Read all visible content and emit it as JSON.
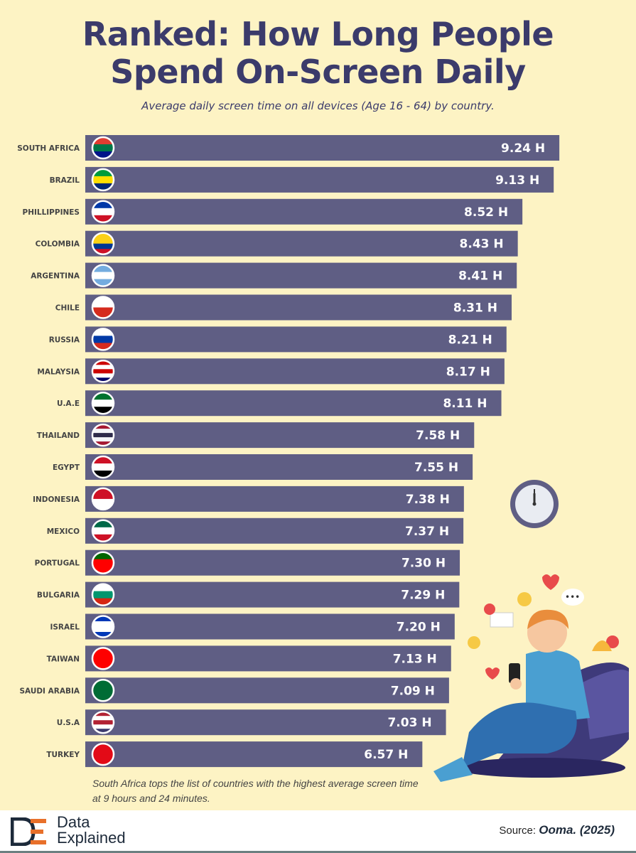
{
  "title_line1": "Ranked: How Long People",
  "title_line2": "Spend On-Screen Daily",
  "subtitle": "Average daily screen time on all devices (Age 16 - 64) by country.",
  "note": "South Africa tops the list of countries with the highest average screen time at 9 hours and 24 minutes.",
  "footer": {
    "logo_line1": "Data",
    "logo_line2": "Explained",
    "source_label": "Source:",
    "source_value": "Ooma. (2025)"
  },
  "colors": {
    "background": "#fdf3c4",
    "bar": "#5f5e84",
    "title": "#3b3b6b",
    "value_text": "#ffffff"
  },
  "chart_data": {
    "type": "bar",
    "orientation": "horizontal",
    "unit_suffix": " H",
    "categories": [
      "SOUTH AFRICA",
      "BRAZIL",
      "PHILLIPPINES",
      "COLOMBIA",
      "ARGENTINA",
      "CHILE",
      "RUSSIA",
      "MALAYSIA",
      "U.A.E",
      "THAILAND",
      "EGYPT",
      "INDONESIA",
      "MEXICO",
      "PORTUGAL",
      "BULGARIA",
      "ISRAEL",
      "TAIWAN",
      "SAUDI ARABIA",
      "U.S.A",
      "TURKEY"
    ],
    "values": [
      9.24,
      9.13,
      8.52,
      8.43,
      8.41,
      8.31,
      8.21,
      8.17,
      8.11,
      7.58,
      7.55,
      7.38,
      7.37,
      7.3,
      7.29,
      7.2,
      7.13,
      7.09,
      7.03,
      6.57
    ],
    "labels": [
      "9.24 H",
      "9.13 H",
      "8.52 H",
      "8.43 H",
      "8.41 H",
      "8.31 H",
      "8.21 H",
      "8.17 H",
      "8.11 H",
      "7.58 H",
      "7.55 H",
      "7.38 H",
      "7.37 H",
      "7.30 H",
      "7.29 H",
      "7.20 H",
      "7.13 H",
      "7.09 H",
      "7.03 H",
      "6.57 H"
    ],
    "flag_colors": [
      [
        "#e03c31",
        "#007749",
        "#001489"
      ],
      [
        "#009c3b",
        "#ffdf00",
        "#002776"
      ],
      [
        "#0038a8",
        "#ffffff",
        "#ce1126"
      ],
      [
        "#fcd116",
        "#fcd116",
        "#003893",
        "#ce1126"
      ],
      [
        "#74acdf",
        "#ffffff",
        "#74acdf"
      ],
      [
        "#ffffff",
        "#d52b1e"
      ],
      [
        "#ffffff",
        "#0039a6",
        "#d52b1e"
      ],
      [
        "#cc0001",
        "#ffffff",
        "#cc0001",
        "#ffffff",
        "#010066"
      ],
      [
        "#00732f",
        "#ffffff",
        "#000000"
      ],
      [
        "#a51931",
        "#f4f5f8",
        "#2d2a4a",
        "#f4f5f8",
        "#a51931"
      ],
      [
        "#ce1126",
        "#ffffff",
        "#000000"
      ],
      [
        "#ce1126",
        "#ffffff"
      ],
      [
        "#006847",
        "#ffffff",
        "#ce1126"
      ],
      [
        "#006600",
        "#ff0000",
        "#ff0000"
      ],
      [
        "#ffffff",
        "#00966e",
        "#d62612"
      ],
      [
        "#0038b8",
        "#ffffff",
        "#ffffff",
        "#0038b8"
      ],
      [
        "#fe0000",
        "#fe0000"
      ],
      [
        "#006c35",
        "#006c35"
      ],
      [
        "#b22234",
        "#ffffff",
        "#b22234",
        "#ffffff",
        "#3c3b6e"
      ],
      [
        "#e30a17",
        "#e30a17"
      ]
    ],
    "xlim": [
      0,
      10
    ],
    "grid": false,
    "legend": "none"
  }
}
